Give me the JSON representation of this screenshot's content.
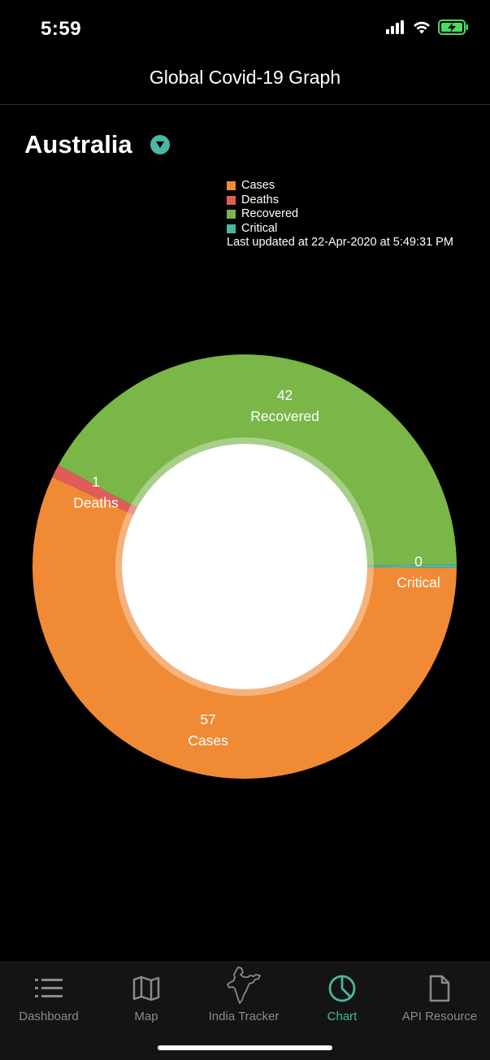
{
  "status": {
    "time": "5:59"
  },
  "nav": {
    "title": "Global Covid-19 Graph"
  },
  "country": {
    "selected": "Australia"
  },
  "legend": {
    "items": [
      {
        "label": "Cases",
        "color": "#F08A35"
      },
      {
        "label": "Deaths",
        "color": "#E05C5A"
      },
      {
        "label": "Recovered",
        "color": "#7AB648"
      },
      {
        "label": "Critical",
        "color": "#4CB69F"
      }
    ],
    "updated": "Last updated at 22-Apr-2020 at 5:49:31 PM"
  },
  "chart_data": {
    "type": "pie",
    "style": "donut",
    "categories": [
      "Cases",
      "Deaths",
      "Recovered",
      "Critical"
    ],
    "values": [
      57,
      1,
      42,
      0
    ],
    "colors": [
      "#F08A35",
      "#E05C5A",
      "#7AB648",
      "#4CB69F"
    ],
    "value_labels": [
      "57",
      "1",
      "42",
      "0"
    ],
    "slice_labels": [
      "Cases",
      "Deaths",
      "Recovered",
      "Critical"
    ]
  },
  "tabs": [
    {
      "label": "Dashboard",
      "icon": "list-icon",
      "active": false
    },
    {
      "label": "Map",
      "icon": "map-icon",
      "active": false
    },
    {
      "label": "India Tracker",
      "icon": "india-map-icon",
      "active": false
    },
    {
      "label": "Chart",
      "icon": "pie-chart-icon",
      "active": true
    },
    {
      "label": "API Resource",
      "icon": "document-icon",
      "active": false
    }
  ]
}
